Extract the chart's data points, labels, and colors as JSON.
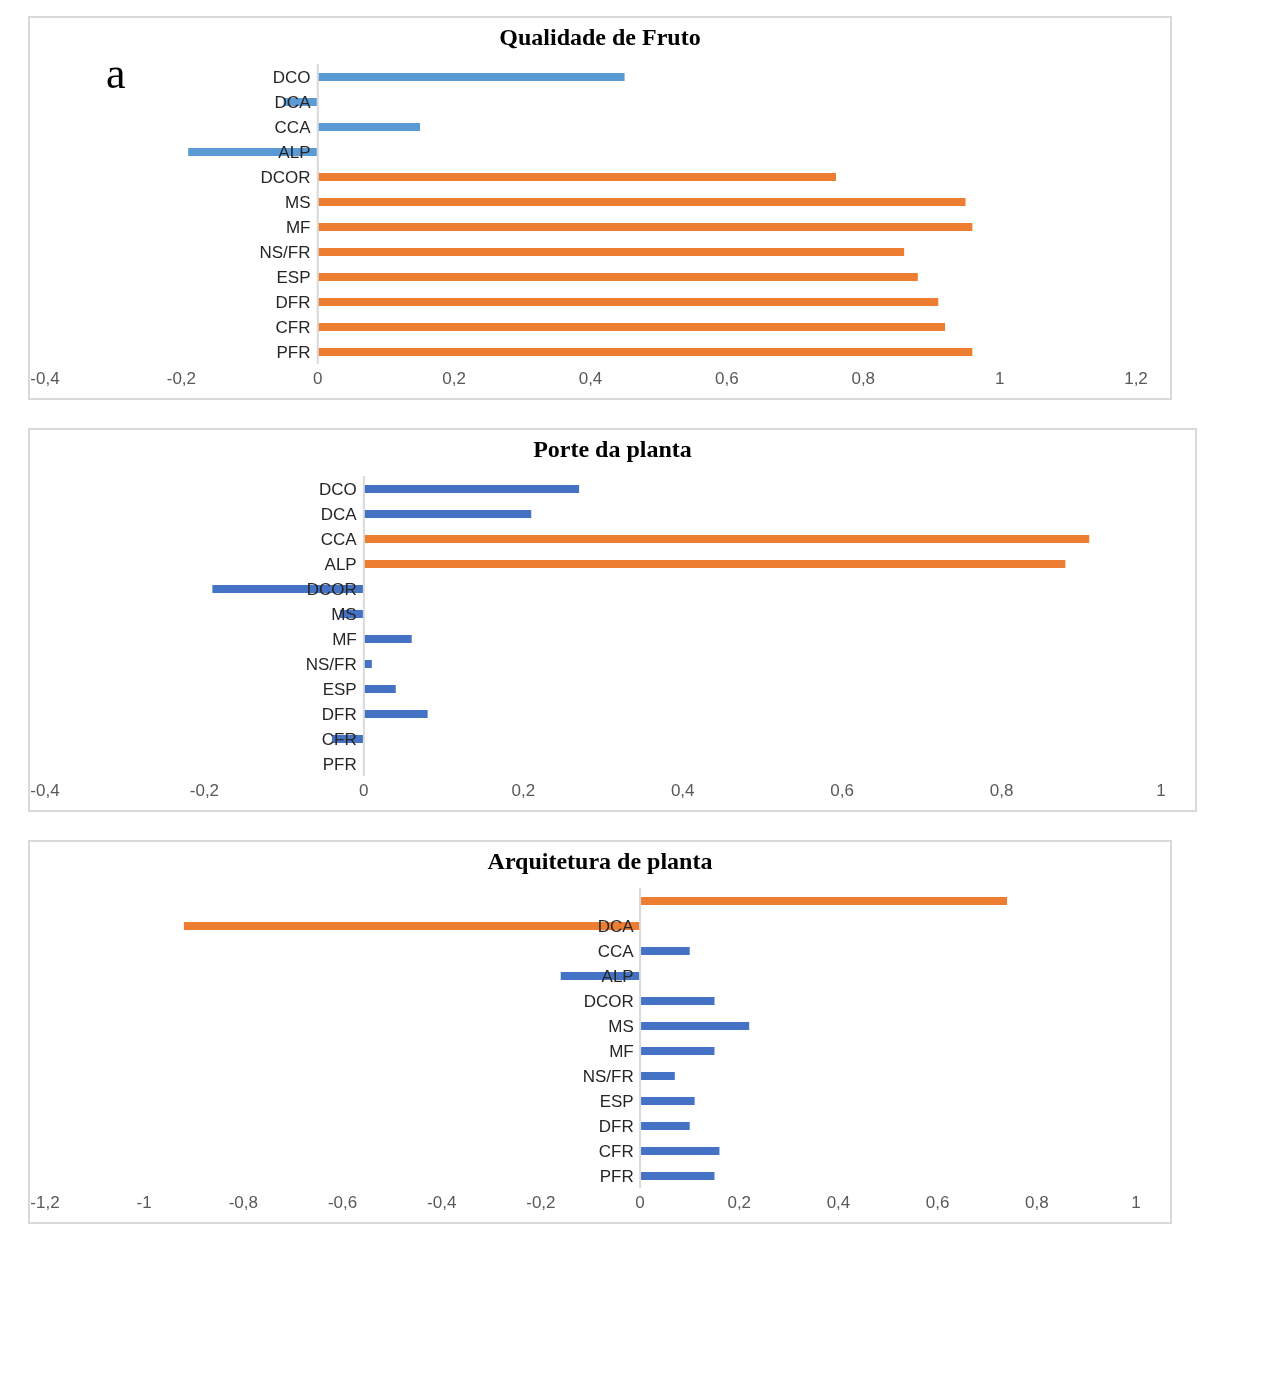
{
  "chart_data": [
    {
      "type": "bar",
      "orientation": "horizontal",
      "title": "Qualidade de Fruto",
      "annotations": [
        "a"
      ],
      "categories": [
        "DCO",
        "DCA",
        "CCA",
        "ALP",
        "DCOR",
        "MS",
        "MF",
        "NS/FR",
        "ESP",
        "DFR",
        "CFR",
        "PFR"
      ],
      "values": [
        0.45,
        -0.05,
        0.15,
        -0.19,
        0.76,
        0.95,
        0.96,
        0.86,
        0.88,
        0.91,
        0.92,
        0.96
      ],
      "colors": [
        "#5b9bd5",
        "#5b9bd5",
        "#5b9bd5",
        "#5b9bd5",
        "#ed7d31",
        "#ed7d31",
        "#ed7d31",
        "#ed7d31",
        "#ed7d31",
        "#ed7d31",
        "#ed7d31",
        "#ed7d31"
      ],
      "xlim": [
        -0.4,
        1.2
      ],
      "xticks": [
        {
          "value": -0.4,
          "label": "-0,4"
        },
        {
          "value": -0.2,
          "label": "-0,2"
        },
        0,
        {
          "value": 0.2,
          "label": "0,2"
        },
        {
          "value": 0.4,
          "label": "0,4"
        },
        {
          "value": 0.6,
          "label": "0,6"
        },
        {
          "value": 0.8,
          "label": "0,8"
        },
        1,
        {
          "value": 1.2,
          "label": "1,2"
        }
      ],
      "grid": false,
      "legend": false
    },
    {
      "type": "bar",
      "orientation": "horizontal",
      "title": "Porte da planta",
      "categories": [
        "DCO",
        "DCA",
        "CCA",
        "ALP",
        "DCOR",
        "MS",
        "MF",
        "NS/FR",
        "ESP",
        "DFR",
        "CFR",
        "PFR"
      ],
      "values": [
        0.27,
        0.21,
        0.91,
        0.88,
        -0.19,
        -0.03,
        0.06,
        0.01,
        0.04,
        0.08,
        -0.04,
        0
      ],
      "colors": [
        "#4472c4",
        "#4472c4",
        "#ed7d31",
        "#ed7d31",
        "#4472c4",
        "#4472c4",
        "#4472c4",
        "#4472c4",
        "#4472c4",
        "#4472c4",
        "#4472c4",
        "#4472c4"
      ],
      "xlim": [
        -0.4,
        1
      ],
      "xticks": [
        {
          "value": -0.4,
          "label": "-0,4"
        },
        {
          "value": -0.2,
          "label": "-0,2"
        },
        0,
        {
          "value": 0.2,
          "label": "0,2"
        },
        {
          "value": 0.4,
          "label": "0,4"
        },
        {
          "value": 0.6,
          "label": "0,6"
        },
        {
          "value": 0.8,
          "label": "0,8"
        },
        1
      ],
      "grid": false,
      "legend": false
    },
    {
      "type": "bar",
      "orientation": "horizontal",
      "title": "Arquitetura de planta",
      "categories": [
        null,
        "DCA",
        "CCA",
        "ALP",
        "DCOR",
        "MS",
        "MF",
        "NS/FR",
        "ESP",
        "DFR",
        "CFR",
        "PFR"
      ],
      "values": [
        0.74,
        -0.92,
        0.1,
        -0.16,
        0.15,
        0.22,
        0.15,
        0.07,
        0.11,
        0.1,
        0.16,
        0.15
      ],
      "colors": [
        "#ed7d31",
        "#ed7d31",
        "#4472c4",
        "#4472c4",
        "#4472c4",
        "#4472c4",
        "#4472c4",
        "#4472c4",
        "#4472c4",
        "#4472c4",
        "#4472c4",
        "#4472c4"
      ],
      "xlim": [
        -1.2,
        1
      ],
      "xticks": [
        {
          "value": -1.2,
          "label": "-1,2"
        },
        -1,
        {
          "value": -0.8,
          "label": "-0,8"
        },
        {
          "value": -0.6,
          "label": "-0,6"
        },
        {
          "value": -0.4,
          "label": "-0,4"
        },
        {
          "value": -0.2,
          "label": "-0,2"
        },
        0,
        {
          "value": 0.2,
          "label": "0,2"
        },
        {
          "value": 0.4,
          "label": "0,4"
        },
        {
          "value": 0.6,
          "label": "0,6"
        },
        {
          "value": 0.8,
          "label": "0,8"
        },
        1
      ],
      "grid": false,
      "legend": false
    }
  ]
}
